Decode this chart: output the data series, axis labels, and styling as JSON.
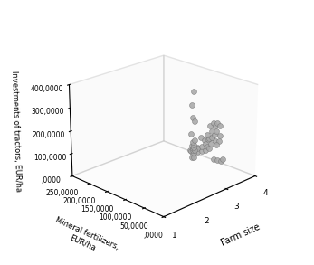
{
  "title": "",
  "xlabel": "Farm size",
  "ylabel": "Mineral fertilizers,\nEUR/ha",
  "zlabel": "Investments of tractors, EUR/ha",
  "x_ticks": [
    1,
    2,
    3,
    4
  ],
  "x_tick_labels": [
    "1",
    "2",
    "3",
    "4"
  ],
  "y_ticks": [
    0,
    50000,
    100000,
    150000,
    200000,
    250000
  ],
  "y_tick_labels": [
    ",0000",
    "50,0000",
    "100,0000",
    "150,0000",
    "200,0000",
    "250,0000"
  ],
  "z_ticks": [
    0,
    100000,
    200000,
    300000,
    400000
  ],
  "z_tick_labels": [
    ",0000",
    "100,0000",
    "200,0000",
    "300,0000",
    "400,0000"
  ],
  "scatter_color": "#aaaaaa",
  "scatter_edgecolor": "#777777",
  "scatter_size": 18,
  "background_color": "#ffffff",
  "elev": 22,
  "azim": -135,
  "points": [
    [
      2,
      8000,
      460000
    ],
    [
      2,
      12000,
      400000
    ],
    [
      2,
      10000,
      350000
    ],
    [
      2,
      6000,
      340000
    ],
    [
      2,
      14000,
      280000
    ],
    [
      2,
      5000,
      260000
    ],
    [
      2,
      10000,
      250000
    ],
    [
      2,
      8000,
      240000
    ],
    [
      2,
      12000,
      235000
    ],
    [
      2,
      7000,
      230000
    ],
    [
      2,
      10000,
      225000
    ],
    [
      2,
      5000,
      220000
    ],
    [
      2,
      9000,
      215000
    ],
    [
      2,
      13000,
      210000
    ],
    [
      2,
      7000,
      205000
    ],
    [
      2,
      10000,
      200000
    ],
    [
      2,
      6000,
      190000
    ],
    [
      2,
      11000,
      185000
    ],
    [
      3,
      25000,
      270000
    ],
    [
      3,
      35000,
      265000
    ],
    [
      3,
      20000,
      260000
    ],
    [
      3,
      30000,
      255000
    ],
    [
      3,
      45000,
      245000
    ],
    [
      3,
      28000,
      235000
    ],
    [
      3,
      40000,
      225000
    ],
    [
      3,
      18000,
      220000
    ],
    [
      3,
      32000,
      215000
    ],
    [
      3,
      50000,
      205000
    ],
    [
      3,
      38000,
      200000
    ],
    [
      3,
      47000,
      190000
    ],
    [
      3,
      28000,
      175000
    ],
    [
      3,
      42000,
      170000
    ],
    [
      3,
      55000,
      160000
    ],
    [
      3,
      50000,
      155000
    ],
    [
      3,
      45000,
      150000
    ],
    [
      3,
      65000,
      145000
    ],
    [
      3,
      55000,
      135000
    ],
    [
      3,
      75000,
      130000
    ],
    [
      3,
      65000,
      125000
    ],
    [
      3,
      85000,
      120000
    ],
    [
      3,
      75000,
      115000
    ],
    [
      3,
      95000,
      110000
    ],
    [
      4,
      115000,
      100000
    ],
    [
      4,
      95000,
      95000
    ],
    [
      4,
      105000,
      90000
    ],
    [
      4,
      125000,
      85000
    ],
    [
      4,
      145000,
      80000
    ],
    [
      4,
      135000,
      75000
    ],
    [
      4,
      155000,
      30000
    ],
    [
      4,
      85000,
      20000
    ],
    [
      4,
      90000,
      10000
    ],
    [
      4,
      100000,
      5000
    ],
    [
      4,
      110000,
      3000
    ]
  ]
}
